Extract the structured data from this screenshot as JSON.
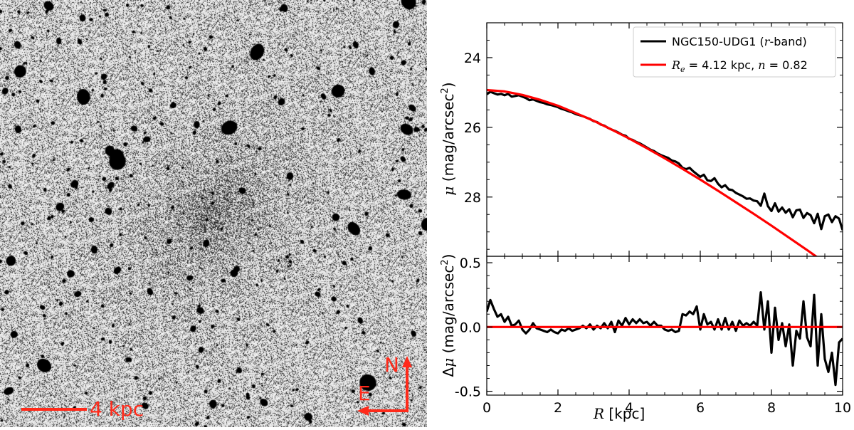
{
  "image_panel": {
    "scale_bar_label": "4 kpc",
    "compass_north": "N",
    "compass_east": "E",
    "annotation_color": "#ff2a1a"
  },
  "colors": {
    "data_line": "#000000",
    "model_line": "#ff0000"
  },
  "chart_data": [
    {
      "type": "line",
      "panel": "profile",
      "xlabel": "R [kpc]",
      "xlim": [
        0,
        10
      ],
      "ylabel": "μ (mag/arcsec²)",
      "ylim": [
        29.7,
        23.0
      ],
      "y_inverted": true,
      "yticks": [
        24,
        26,
        28
      ],
      "legend": "top-right",
      "series": [
        {
          "name": "NGC150-UDG1 (r-band)",
          "color": "#000000",
          "x": [
            0,
            0.1,
            0.2,
            0.3,
            0.4,
            0.5,
            0.6,
            0.7,
            0.8,
            0.9,
            1.0,
            1.1,
            1.2,
            1.3,
            1.4,
            1.5,
            1.6,
            1.7,
            1.8,
            1.9,
            2.0,
            2.1,
            2.2,
            2.3,
            2.4,
            2.5,
            2.6,
            2.7,
            2.8,
            2.9,
            3.0,
            3.1,
            3.2,
            3.3,
            3.4,
            3.5,
            3.6,
            3.7,
            3.8,
            3.9,
            4.0,
            4.1,
            4.2,
            4.3,
            4.4,
            4.5,
            4.6,
            4.7,
            4.8,
            4.9,
            5.0,
            5.1,
            5.2,
            5.3,
            5.4,
            5.5,
            5.6,
            5.7,
            5.8,
            5.9,
            6.0,
            6.1,
            6.2,
            6.3,
            6.4,
            6.5,
            6.6,
            6.7,
            6.8,
            6.9,
            7.0,
            7.1,
            7.2,
            7.3,
            7.4,
            7.5,
            7.6,
            7.7,
            7.8,
            7.9,
            8.0,
            8.1,
            8.2,
            8.3,
            8.4,
            8.5,
            8.6,
            8.7,
            8.8,
            8.9,
            9.0,
            9.1,
            9.2,
            9.3,
            9.4,
            9.5,
            9.6,
            9.7,
            9.8,
            9.9,
            10.0
          ],
          "y": [
            25.05,
            24.98,
            25.02,
            25.06,
            25.04,
            25.08,
            25.04,
            25.12,
            25.1,
            25.08,
            25.12,
            25.16,
            25.22,
            25.2,
            25.24,
            25.28,
            25.3,
            25.34,
            25.36,
            25.39,
            25.42,
            25.47,
            25.5,
            25.54,
            25.57,
            25.62,
            25.65,
            25.68,
            25.72,
            25.76,
            25.82,
            25.85,
            25.92,
            25.95,
            26.01,
            26.06,
            26.1,
            26.15,
            26.21,
            26.24,
            26.33,
            26.36,
            26.42,
            26.46,
            26.52,
            26.58,
            26.64,
            26.68,
            26.75,
            26.8,
            26.84,
            26.88,
            26.95,
            26.98,
            27.04,
            27.16,
            27.2,
            27.16,
            27.26,
            27.34,
            27.42,
            27.36,
            27.52,
            27.54,
            27.46,
            27.62,
            27.72,
            27.66,
            27.78,
            27.8,
            27.88,
            27.93,
            27.98,
            28.05,
            28.04,
            28.1,
            28.12,
            28.25,
            27.9,
            28.26,
            28.4,
            28.18,
            28.42,
            28.3,
            28.45,
            28.35,
            28.58,
            28.38,
            28.36,
            28.6,
            28.46,
            28.52,
            28.75,
            28.48,
            28.92,
            28.55,
            28.5,
            28.72,
            28.55,
            28.62,
            28.95
          ]
        },
        {
          "name": "R_e = 4.12 kpc, n = 0.82",
          "color": "#ff0000",
          "x": [
            0,
            0.5,
            1.0,
            1.5,
            2.0,
            2.5,
            3.0,
            3.5,
            4.0,
            4.5,
            5.0,
            5.5,
            6.0,
            6.5,
            7.0,
            7.5,
            8.0,
            8.5,
            9.0,
            9.5,
            10.0
          ],
          "y": [
            24.93,
            24.97,
            25.07,
            25.21,
            25.38,
            25.59,
            25.81,
            26.06,
            26.32,
            26.6,
            26.89,
            27.19,
            27.5,
            27.82,
            28.15,
            28.48,
            28.82,
            29.17,
            29.52,
            29.88,
            30.24
          ]
        }
      ]
    },
    {
      "type": "line",
      "panel": "residual",
      "xlabel": "R [kpc]",
      "xlim": [
        0,
        10
      ],
      "xticks": [
        0,
        2,
        4,
        6,
        8,
        10
      ],
      "ylabel": "Δμ (mag/arcsec²)",
      "ylim": [
        -0.53,
        0.55
      ],
      "yticks": [
        0.5,
        0.0,
        -0.5
      ],
      "series": [
        {
          "name": "",
          "color": "#000000",
          "x": [
            0,
            0.1,
            0.2,
            0.3,
            0.4,
            0.5,
            0.6,
            0.7,
            0.8,
            0.9,
            1.0,
            1.1,
            1.2,
            1.3,
            1.4,
            1.5,
            1.6,
            1.7,
            1.8,
            1.9,
            2.0,
            2.1,
            2.2,
            2.3,
            2.4,
            2.5,
            2.6,
            2.7,
            2.8,
            2.9,
            3.0,
            3.1,
            3.2,
            3.3,
            3.4,
            3.5,
            3.6,
            3.7,
            3.8,
            3.9,
            4.0,
            4.1,
            4.2,
            4.3,
            4.4,
            4.5,
            4.6,
            4.7,
            4.8,
            4.9,
            5.0,
            5.1,
            5.2,
            5.3,
            5.4,
            5.5,
            5.6,
            5.7,
            5.8,
            5.9,
            6.0,
            6.1,
            6.2,
            6.3,
            6.4,
            6.5,
            6.6,
            6.7,
            6.8,
            6.9,
            7.0,
            7.1,
            7.2,
            7.3,
            7.4,
            7.5,
            7.6,
            7.7,
            7.8,
            7.9,
            8.0,
            8.1,
            8.2,
            8.3,
            8.4,
            8.5,
            8.6,
            8.7,
            8.8,
            8.9,
            9.0,
            9.1,
            9.2,
            9.3,
            9.4,
            9.5,
            9.6,
            9.7,
            9.8,
            9.9,
            10.0
          ],
          "y": [
            0.12,
            0.21,
            0.14,
            0.08,
            0.1,
            0.04,
            0.08,
            0.01,
            0.02,
            0.05,
            -0.02,
            -0.05,
            -0.02,
            0.03,
            -0.01,
            -0.02,
            -0.03,
            -0.04,
            -0.02,
            -0.04,
            -0.05,
            -0.02,
            -0.03,
            -0.01,
            -0.03,
            -0.02,
            -0.01,
            0.01,
            -0.01,
            0.02,
            -0.02,
            0.01,
            -0.01,
            0.03,
            -0.01,
            0.04,
            -0.04,
            0.05,
            0.01,
            0.07,
            0.02,
            0.06,
            0.03,
            0.06,
            0.03,
            0.04,
            0.01,
            0.04,
            0.01,
            0.01,
            -0.02,
            -0.03,
            -0.02,
            -0.04,
            -0.03,
            0.1,
            0.09,
            0.12,
            0.1,
            0.16,
            -0.02,
            0.1,
            0.02,
            0.04,
            -0.02,
            0.06,
            -0.02,
            0.07,
            -0.02,
            0.04,
            -0.03,
            0.05,
            0.01,
            0.03,
            0.01,
            0.04,
            0.01,
            0.27,
            -0.02,
            0.2,
            -0.2,
            0.15,
            -0.1,
            0.03,
            -0.15,
            0.02,
            -0.3,
            -0.03,
            -0.09,
            0.2,
            -0.08,
            -0.15,
            0.25,
            -0.3,
            0.1,
            -0.25,
            -0.35,
            -0.2,
            -0.45,
            -0.12,
            -0.09
          ]
        },
        {
          "name": "",
          "color": "#ff0000",
          "x": [
            0,
            10
          ],
          "y": [
            0,
            0
          ]
        }
      ]
    }
  ]
}
